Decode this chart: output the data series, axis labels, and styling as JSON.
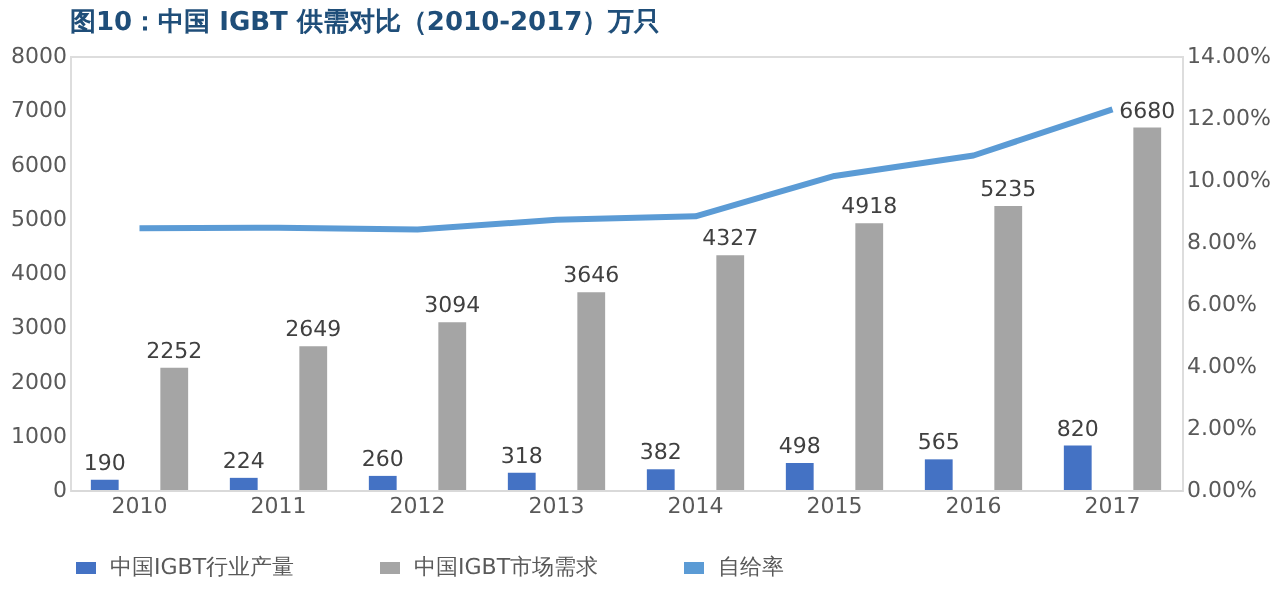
{
  "chart_data": {
    "type": "bar",
    "title": "图10：中国 IGBT 供需对比（2010-2017）万只",
    "categories": [
      "2010",
      "2011",
      "2012",
      "2013",
      "2014",
      "2015",
      "2016",
      "2017"
    ],
    "series": [
      {
        "name": "中国IGBT行业产量",
        "color": "#4472c4",
        "values": [
          190,
          224,
          260,
          318,
          382,
          498,
          565,
          820
        ],
        "value_labels": [
          "190",
          "224",
          "260",
          "318",
          "382",
          "498",
          "565",
          "820"
        ]
      },
      {
        "name": "中国IGBT市场需求",
        "color": "#a5a5a5",
        "values": [
          2252,
          2649,
          3094,
          3646,
          4327,
          4918,
          5235,
          6680
        ],
        "value_labels": [
          "2252",
          "2649",
          "3094",
          "3646",
          "4327",
          "4918",
          "5235",
          "6680"
        ]
      },
      {
        "name": "自给率",
        "type": "line",
        "axis": "y2",
        "line_style": "solid",
        "color": "#5b9bd5",
        "values": [
          8.44,
          8.46,
          8.4,
          8.72,
          8.83,
          10.13,
          10.79,
          12.28
        ]
      }
    ],
    "ylim": [
      0,
      8000
    ],
    "yticks": [
      0,
      1000,
      2000,
      3000,
      4000,
      5000,
      6000,
      7000,
      8000
    ],
    "y2lim": [
      0,
      14
    ],
    "y2ticks": [
      {
        "value": 0,
        "label": "0.00%"
      },
      {
        "value": 2,
        "label": "2.00%"
      },
      {
        "value": 4,
        "label": "4.00%"
      },
      {
        "value": 6,
        "label": "6.00%"
      },
      {
        "value": 8,
        "label": "8.00%"
      },
      {
        "value": 10,
        "label": "10.00%"
      },
      {
        "value": 12,
        "label": "12.00%"
      },
      {
        "value": 14,
        "label": "14.00%"
      }
    ],
    "legend": "bottom",
    "grid": false,
    "marker": "none"
  }
}
